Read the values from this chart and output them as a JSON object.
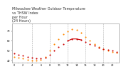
{
  "title": "Milwaukee Weather Outdoor Temperature\nvs THSW Index\nper Hour\n(24 Hours)",
  "title_fontsize": 3.5,
  "hours": [
    0,
    1,
    2,
    3,
    4,
    5,
    6,
    7,
    8,
    9,
    10,
    11,
    12,
    13,
    14,
    15,
    16,
    17,
    18,
    19,
    20,
    21,
    22,
    23
  ],
  "temp": [
    47,
    46,
    45,
    44,
    43,
    42,
    42,
    43,
    46,
    50,
    54,
    57,
    60,
    62,
    62,
    61,
    59,
    57,
    55,
    53,
    52,
    51,
    50,
    49
  ],
  "thsw": [
    44,
    43,
    42,
    41,
    40,
    40,
    41,
    44,
    50,
    57,
    62,
    67,
    70,
    72,
    71,
    68,
    64,
    60,
    57,
    54,
    52,
    50,
    49,
    48
  ],
  "temp_color": "#cc0000",
  "thsw_color": "#ff8800",
  "grid_color": "#aaaaaa",
  "bg_color": "#ffffff",
  "ylim": [
    38,
    78
  ],
  "xlim": [
    -0.5,
    23.5
  ],
  "xtick_labels": [
    "0",
    "",
    "2",
    "",
    "4",
    "",
    "6",
    "",
    "8",
    "",
    "10",
    "",
    "12",
    "",
    "14",
    "",
    "16",
    "",
    "18",
    "",
    "20",
    "",
    "22",
    ""
  ],
  "ytick_labels": [
    "40",
    "50",
    "60",
    "70"
  ],
  "yticks": [
    40,
    50,
    60,
    70
  ],
  "vlines": [
    4,
    8,
    12,
    16,
    20
  ],
  "marker_size": 1.5
}
